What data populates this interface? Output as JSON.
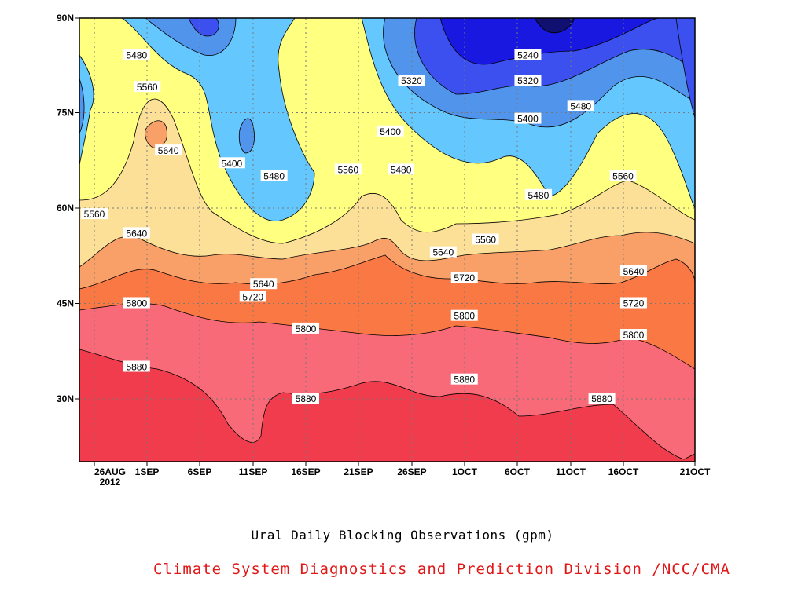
{
  "chart_data": {
    "type": "contour",
    "title": "Ural Daily Blocking Observations (gpm)",
    "xlabel": "",
    "ylabel": "",
    "x_ticks": [
      "26AUG\n2012",
      "1SEP",
      "6SEP",
      "11SEP",
      "16SEP",
      "21SEP",
      "26SEP",
      "1OCT",
      "6OCT",
      "11OCT",
      "16OCT",
      "21OCT"
    ],
    "y_ticks": [
      "30N",
      "45N",
      "60N",
      "75N",
      "90N"
    ],
    "ylim": [
      20,
      90
    ],
    "xlim": [
      "2012-08-26",
      "2012-10-21"
    ],
    "grid": true,
    "contour_levels": [
      5240,
      5320,
      5400,
      5480,
      5560,
      5640,
      5720,
      5800,
      5880
    ],
    "level_colors": {
      "above_5880": "#f03c4c",
      "5800_5880": "#f86a78",
      "5720_5800": "#fa7844",
      "5640_5720": "#f8a068",
      "5560_5640": "#fde098",
      "5480_5560": "#ffff80",
      "5400_5480": "#64c8ff",
      "5320_5400": "#5094ec",
      "5240_5320": "#3c50f0",
      "below_5240": "#1818e0"
    },
    "contour_labels": [
      {
        "value": "5480",
        "date": "2012-08-30",
        "lat": 84
      },
      {
        "value": "5560",
        "date": "2012-08-31",
        "lat": 79
      },
      {
        "value": "5640",
        "date": "2012-09-02",
        "lat": 69
      },
      {
        "value": "5560",
        "date": "2012-08-26",
        "lat": 59
      },
      {
        "value": "5640",
        "date": "2012-08-30",
        "lat": 56
      },
      {
        "value": "5400",
        "date": "2012-09-08",
        "lat": 67
      },
      {
        "value": "5480",
        "date": "2012-09-12",
        "lat": 65
      },
      {
        "value": "5560",
        "date": "2012-09-19",
        "lat": 66
      },
      {
        "value": "5480",
        "date": "2012-09-24",
        "lat": 66
      },
      {
        "value": "5320",
        "date": "2012-09-25",
        "lat": 80
      },
      {
        "value": "5400",
        "date": "2012-09-23",
        "lat": 72
      },
      {
        "value": "5240",
        "date": "2012-10-06",
        "lat": 84
      },
      {
        "value": "5320",
        "date": "2012-10-06",
        "lat": 80
      },
      {
        "value": "5400",
        "date": "2012-10-06",
        "lat": 74
      },
      {
        "value": "5480",
        "date": "2012-10-11",
        "lat": 76
      },
      {
        "value": "5480",
        "date": "2012-10-07",
        "lat": 62
      },
      {
        "value": "5560",
        "date": "2012-10-15",
        "lat": 65
      },
      {
        "value": "5640",
        "date": "2012-09-28",
        "lat": 53
      },
      {
        "value": "5560",
        "date": "2012-10-02",
        "lat": 55
      },
      {
        "value": "5640",
        "date": "2012-09-11",
        "lat": 48
      },
      {
        "value": "5720",
        "date": "2012-09-10",
        "lat": 46
      },
      {
        "value": "5720",
        "date": "2012-09-30",
        "lat": 49
      },
      {
        "value": "5640",
        "date": "2012-10-16",
        "lat": 50
      },
      {
        "value": "5720",
        "date": "2012-10-16",
        "lat": 45
      },
      {
        "value": "5800",
        "date": "2012-08-30",
        "lat": 45
      },
      {
        "value": "5800",
        "date": "2012-09-15",
        "lat": 41
      },
      {
        "value": "5800",
        "date": "2012-09-30",
        "lat": 43
      },
      {
        "value": "5800",
        "date": "2012-10-16",
        "lat": 40
      },
      {
        "value": "5880",
        "date": "2012-08-30",
        "lat": 35
      },
      {
        "value": "5880",
        "date": "2012-09-15",
        "lat": 30
      },
      {
        "value": "5880",
        "date": "2012-09-30",
        "lat": 33
      },
      {
        "value": "5880",
        "date": "2012-10-13",
        "lat": 30
      }
    ]
  },
  "footer": {
    "credit": "Climate System Diagnostics and Prediction Division /NCC/CMA",
    "credit_color": "#e01818"
  }
}
